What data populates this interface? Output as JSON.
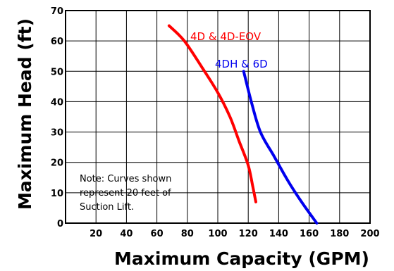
{
  "chart_data": {
    "type": "line",
    "xlabel": "Maximum Capacity (GPM)",
    "ylabel": "Maximum Head (ft)",
    "xlim": [
      0,
      200
    ],
    "ylim": [
      0,
      70
    ],
    "x_ticks": [
      20,
      40,
      60,
      80,
      100,
      120,
      140,
      160,
      180,
      200
    ],
    "y_ticks": [
      0,
      10,
      20,
      30,
      40,
      50,
      60,
      70
    ],
    "grid": true,
    "note": [
      "Note: Curves shown",
      "represent 20 feet of",
      "Suction Lift."
    ],
    "series": [
      {
        "name": "4D & 4D-EOV",
        "color": "#ff0000",
        "points": [
          [
            68,
            65
          ],
          [
            78,
            60
          ],
          [
            90,
            51
          ],
          [
            100,
            43
          ],
          [
            108,
            35
          ],
          [
            114,
            27
          ],
          [
            120,
            19
          ],
          [
            123,
            12
          ],
          [
            125,
            7
          ]
        ]
      },
      {
        "name": "4DH & 6D",
        "color": "#0000ee",
        "points": [
          [
            117,
            50
          ],
          [
            122,
            40
          ],
          [
            128,
            30
          ],
          [
            137,
            22
          ],
          [
            146,
            14
          ],
          [
            155,
            7
          ],
          [
            165,
            0
          ]
        ]
      }
    ]
  }
}
